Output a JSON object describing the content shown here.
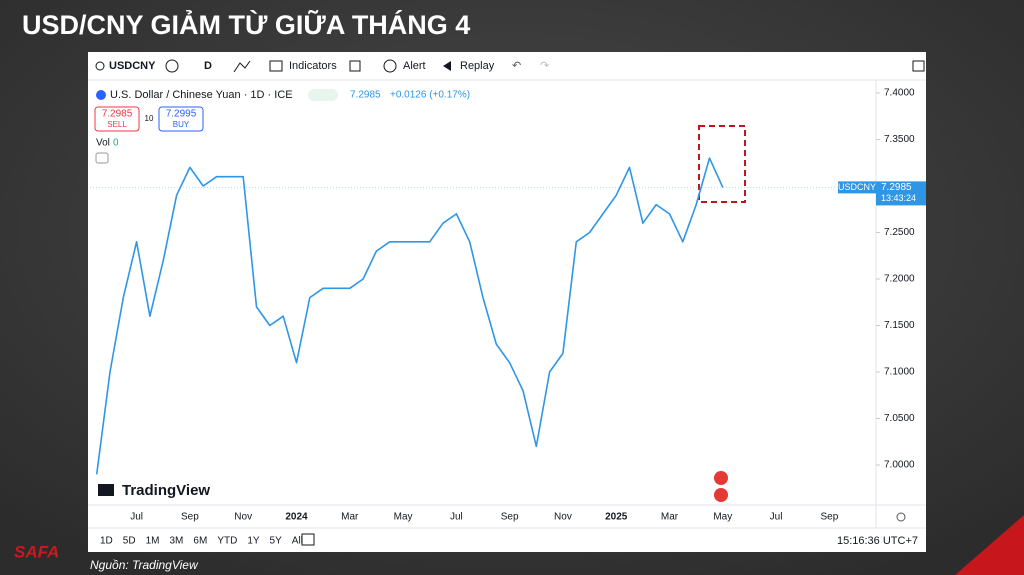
{
  "slide": {
    "title": "USD/CNY GIẢM TỪ GIỮA THÁNG 4",
    "source": "Nguồn: TradingView",
    "logo": "SAFA"
  },
  "toolbar": {
    "symbol": "USDCNY",
    "interval": "D",
    "items": [
      "Indicators",
      "Alert",
      "Replay"
    ]
  },
  "legend": {
    "name": "U.S. Dollar / Chinese Yuan · 1D · ICE",
    "last": "7.2985",
    "change": "+0.0126 (+0.17%)",
    "sell_price": "7.2985",
    "sell": "SELL",
    "spread": "10",
    "buy_price": "7.2995",
    "buy": "BUY",
    "volume_label": "Vol",
    "volume": "0"
  },
  "price_tag": {
    "symbol": "USDCNY",
    "price": "7.2985",
    "countdown": "13:43:24"
  },
  "watermark": "TradingView",
  "bottom_bar": {
    "ranges": [
      "1D",
      "5D",
      "1M",
      "3M",
      "6M",
      "YTD",
      "1Y",
      "5Y",
      "All"
    ],
    "clock": "15:16:36 UTC+7"
  },
  "chart_data": {
    "type": "line",
    "color": "#2f96e6",
    "categories": [
      null,
      null,
      null,
      "Jul",
      null,
      null,
      null,
      "Sep",
      null,
      null,
      null,
      "Nov",
      null,
      null,
      null,
      "2024",
      null,
      null,
      null,
      "Mar",
      null,
      null,
      null,
      "May",
      null,
      null,
      null,
      "Jul",
      null,
      null,
      null,
      "Sep",
      null,
      null,
      null,
      "Nov",
      null,
      null,
      null,
      "2025",
      null,
      null,
      null,
      "Mar",
      null,
      null,
      null,
      "May",
      null,
      null,
      null,
      "Jul",
      null,
      null,
      null,
      "Sep",
      null,
      null,
      null
    ],
    "values": [
      6.99,
      7.1,
      7.18,
      7.24,
      7.16,
      7.22,
      7.29,
      7.32,
      7.3,
      7.31,
      7.31,
      7.31,
      7.17,
      7.15,
      7.16,
      7.11,
      7.18,
      7.19,
      7.19,
      7.19,
      7.2,
      7.23,
      7.24,
      7.24,
      7.24,
      7.24,
      7.26,
      7.27,
      7.24,
      7.18,
      7.13,
      7.11,
      7.08,
      7.02,
      7.1,
      7.12,
      7.24,
      7.25,
      7.27,
      7.29,
      7.32,
      7.26,
      7.28,
      7.27,
      7.24,
      7.28,
      7.33,
      7.2985,
      null,
      null,
      null,
      null,
      null,
      null,
      null,
      null,
      null,
      null,
      null
    ],
    "ylim": [
      6.957,
      7.4086
    ],
    "yticks": [
      {
        "value": 7.0,
        "label": "7.0000"
      },
      {
        "value": 7.05,
        "label": "7.0500"
      },
      {
        "value": 7.1,
        "label": "7.1000"
      },
      {
        "value": 7.15,
        "label": "7.1500"
      },
      {
        "value": 7.2,
        "label": "7.2000"
      },
      {
        "value": 7.25,
        "label": "7.2500"
      },
      {
        "value": 7.3,
        "label": "7.3000"
      },
      {
        "value": 7.35,
        "label": "7.3500"
      },
      {
        "value": 7.4,
        "label": "7.4000"
      }
    ],
    "grid": false
  }
}
